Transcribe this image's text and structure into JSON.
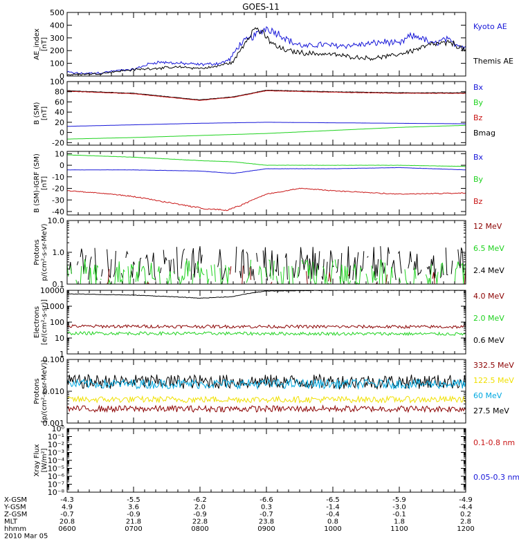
{
  "title": "GOES-11",
  "colors": {
    "black": "#000000",
    "blue": "#1515d8",
    "green": "#1ed21e",
    "red": "#c81414",
    "darkred": "#8b0000",
    "yellow": "#f0e000",
    "cyan": "#00a8e0"
  },
  "chart_data": [
    {
      "type": "line",
      "ylabel": "AE_index\n[nT]",
      "ylim": [
        0,
        500
      ],
      "yscale": "linear",
      "yticks": [
        0,
        100,
        200,
        300,
        400,
        500
      ],
      "ytick_labels": [
        "0",
        "100",
        "200",
        "300",
        "400",
        "500"
      ],
      "series": [
        {
          "name": "Kyoto AE",
          "color": "blue",
          "noise": 0.35,
          "x": [
            0,
            0.2,
            0.5,
            0.8,
            1.0,
            1.2,
            1.35,
            1.7,
            2.0,
            2.3,
            2.45,
            2.6,
            2.8,
            3.0,
            3.2,
            3.4,
            3.6,
            3.8,
            4.0,
            4.2,
            4.5,
            4.8,
            5.0,
            5.15,
            5.3,
            5.5,
            5.7,
            5.8,
            6.0
          ],
          "y": [
            30,
            20,
            25,
            45,
            50,
            90,
            110,
            100,
            90,
            100,
            130,
            250,
            310,
            380,
            330,
            260,
            230,
            250,
            240,
            240,
            250,
            270,
            250,
            310,
            310,
            250,
            290,
            260,
            230
          ]
        },
        {
          "name": "Themis AE",
          "color": "black",
          "noise": 0.35,
          "x": [
            0,
            0.3,
            0.5,
            0.8,
            1.0,
            1.3,
            1.7,
            2.0,
            2.2,
            2.5,
            2.75,
            2.85,
            3.0,
            3.15,
            3.3,
            3.6,
            4.0,
            4.3,
            4.6,
            4.9,
            5.2,
            5.5,
            5.8,
            6.0
          ],
          "y": [
            10,
            15,
            20,
            40,
            50,
            60,
            70,
            60,
            70,
            110,
            330,
            380,
            300,
            230,
            200,
            180,
            170,
            150,
            140,
            160,
            200,
            250,
            260,
            200
          ]
        }
      ],
      "legend": [
        {
          "label": "Kyoto AE",
          "color": "blue"
        },
        {
          "label": "Themis AE",
          "color": "black"
        }
      ]
    },
    {
      "type": "line",
      "ylabel": "B (SM)\n[nT]",
      "ylim": [
        -25,
        100
      ],
      "yscale": "linear",
      "yticks": [
        -20,
        0,
        20,
        40,
        60,
        80,
        100
      ],
      "ytick_labels": [
        "-20",
        "0",
        "20",
        "40",
        "60",
        "80",
        "100"
      ],
      "series": [
        {
          "name": "Bmag",
          "color": "black",
          "noise": 0.02,
          "x": [
            0,
            1,
            2,
            2.5,
            3,
            4,
            5,
            6
          ],
          "y": [
            82,
            77,
            64,
            70,
            83,
            80,
            78,
            78
          ]
        },
        {
          "name": "Bz",
          "color": "red",
          "noise": 0.02,
          "x": [
            0,
            1,
            2,
            2.5,
            3,
            4,
            5,
            6
          ],
          "y": [
            81,
            76,
            63,
            69,
            82,
            79,
            77,
            77
          ]
        },
        {
          "name": "Bx",
          "color": "blue",
          "noise": 0.01,
          "x": [
            0,
            1,
            2,
            3,
            4,
            5,
            6
          ],
          "y": [
            12,
            15,
            18,
            20,
            19,
            18,
            17
          ]
        },
        {
          "name": "By",
          "color": "green",
          "noise": 0.01,
          "x": [
            0,
            1,
            2,
            3,
            4,
            5,
            6
          ],
          "y": [
            -13,
            -10,
            -6,
            -2,
            4,
            10,
            14
          ]
        }
      ],
      "legend": [
        {
          "label": "Bx",
          "color": "blue"
        },
        {
          "label": "By",
          "color": "green"
        },
        {
          "label": "Bz",
          "color": "red"
        },
        {
          "label": "Bmag",
          "color": "black"
        }
      ]
    },
    {
      "type": "line",
      "ylabel": "B (SM)-IGRF (SM)\n[nT]",
      "ylim": [
        -43,
        12
      ],
      "yscale": "linear",
      "yticks": [
        -40,
        -30,
        -20,
        -10,
        0,
        10
      ],
      "ytick_labels": [
        "-40",
        "-30",
        "-20",
        "-10",
        "0",
        "10"
      ],
      "series": [
        {
          "name": "By",
          "color": "green",
          "noise": 0.04,
          "x": [
            0,
            1,
            2,
            2.5,
            3,
            4,
            5,
            6
          ],
          "y": [
            9,
            7,
            4,
            3,
            0,
            0,
            0,
            -1
          ]
        },
        {
          "name": "Bx",
          "color": "blue",
          "noise": 0.04,
          "x": [
            0,
            1,
            2,
            2.5,
            3,
            4,
            5,
            6
          ],
          "y": [
            -4,
            -4,
            -5,
            -7,
            -3,
            -3,
            -2,
            -4
          ]
        },
        {
          "name": "Bz",
          "color": "red",
          "noise": 0.06,
          "x": [
            0,
            0.5,
            1,
            1.5,
            2,
            2.4,
            2.6,
            3,
            3.5,
            4,
            5,
            6
          ],
          "y": [
            -22,
            -24,
            -27,
            -32,
            -37,
            -39,
            -35,
            -25,
            -20,
            -22,
            -25,
            -24
          ]
        }
      ],
      "legend": [
        {
          "label": "Bx",
          "color": "blue"
        },
        {
          "label": "By",
          "color": "green"
        },
        {
          "label": "Bz",
          "color": "red"
        }
      ]
    },
    {
      "type": "line",
      "ylabel": "Protons\np/(cm²-s-sr-MeV)",
      "ylim": [
        0.1,
        10.0
      ],
      "yscale": "log",
      "yticks": [
        0.1,
        1.0,
        10.0
      ],
      "ytick_labels": [
        "0.1",
        "1.0",
        "10.0"
      ],
      "series": [
        {
          "name": "2.4 MeV",
          "color": "black",
          "noise": 0.55,
          "gaps": true,
          "x": [
            0,
            6
          ],
          "y": [
            0.45,
            0.45
          ]
        },
        {
          "name": "6.5 MeV",
          "color": "green",
          "noise": 0.55,
          "gaps": true,
          "x": [
            0,
            6
          ],
          "y": [
            0.17,
            0.17
          ]
        },
        {
          "name": "12 MeV",
          "color": "darkred",
          "noise": 0.5,
          "gaps": true,
          "sparse": true,
          "x": [
            0,
            6
          ],
          "y": [
            0.12,
            0.12
          ]
        }
      ],
      "legend": [
        {
          "label": "12 MeV",
          "color": "darkred"
        },
        {
          "label": "6.5 MeV",
          "color": "green"
        },
        {
          "label": "2.4 MeV",
          "color": "black"
        }
      ]
    },
    {
      "type": "line",
      "ylabel": "Electrons\n[e/(cm²-s-sr)]",
      "ylim": [
        1,
        10000
      ],
      "yscale": "log",
      "yticks": [
        1,
        10,
        100,
        1000,
        10000
      ],
      "ytick_labels": [
        "1",
        "10",
        "100",
        "1000",
        "10000"
      ],
      "series": [
        {
          "name": "0.6 MeV",
          "color": "black",
          "noise": 0.03,
          "x": [
            0,
            1,
            2,
            2.5,
            3,
            4,
            5,
            6
          ],
          "y": [
            6000,
            5000,
            3200,
            4000,
            9000,
            10000,
            10000,
            10000
          ]
        },
        {
          "name": "4.0 MeV",
          "color": "darkred",
          "noise": 0.2,
          "x": [
            0,
            6
          ],
          "y": [
            55,
            50
          ]
        },
        {
          "name": "2.0 MeV",
          "color": "green",
          "noise": 0.2,
          "x": [
            0,
            6
          ],
          "y": [
            20,
            18
          ]
        }
      ],
      "legend": [
        {
          "label": "4.0 MeV",
          "color": "darkred"
        },
        {
          "label": "2.0 MeV",
          "color": "green"
        },
        {
          "label": "0.6 MeV",
          "color": "black"
        }
      ]
    },
    {
      "type": "line",
      "ylabel": "Protons\n[p/(cm²-s-sr-MeV)]",
      "ylim": [
        0.001,
        0.1
      ],
      "yscale": "log",
      "yticks": [
        0.001,
        0.01,
        0.1
      ],
      "ytick_labels": [
        "0.001",
        "0.010",
        "0.100"
      ],
      "series": [
        {
          "name": "27.5 MeV",
          "color": "black",
          "noise": 0.45,
          "x": [
            0,
            6
          ],
          "y": [
            0.02,
            0.02
          ]
        },
        {
          "name": "60 MeV",
          "color": "cyan",
          "noise": 0.3,
          "x": [
            0,
            6
          ],
          "y": [
            0.017,
            0.017
          ]
        },
        {
          "name": "122.5 MeV",
          "color": "yellow",
          "noise": 0.2,
          "x": [
            0,
            6
          ],
          "y": [
            0.0055,
            0.0055
          ]
        },
        {
          "name": "332.5 MeV",
          "color": "darkred",
          "noise": 0.2,
          "x": [
            0,
            6
          ],
          "y": [
            0.0028,
            0.0028
          ]
        }
      ],
      "legend": [
        {
          "label": "332.5 MeV",
          "color": "darkred"
        },
        {
          "label": "122.5 MeV",
          "color": "yellow"
        },
        {
          "label": "60 MeV",
          "color": "cyan"
        },
        {
          "label": "27.5 MeV",
          "color": "black"
        }
      ]
    },
    {
      "type": "line",
      "ylabel": "Xray Flux\n[W/m²]",
      "ylim": [
        1e-08,
        1
      ],
      "yscale": "log",
      "yticks": [
        1e-08,
        1e-07,
        1e-06,
        1e-05,
        0.0001,
        0.001,
        0.01,
        0.1,
        1
      ],
      "ytick_labels": [
        "10⁻⁸",
        "10⁻⁷",
        "10⁻⁶",
        "10⁻⁵",
        "10⁻⁴",
        "10⁻³",
        "10⁻²",
        "10⁻¹",
        "10⁰"
      ],
      "series": [],
      "legend": [
        {
          "label": "0.1-0.8 nm",
          "color": "red"
        },
        {
          "label": "0.05-0.3 nm",
          "color": "blue"
        }
      ]
    }
  ],
  "axis_table": {
    "xlim": [
      0,
      6
    ],
    "rows": [
      {
        "label": "X-GSM",
        "values": [
          "-4.3",
          "-5.5",
          "-6.2",
          "-6.6",
          "-6.5",
          "-5.9",
          "-4.9"
        ]
      },
      {
        "label": "Y-GSM",
        "values": [
          "4.9",
          "3.6",
          "2.0",
          "0.3",
          "-1.4",
          "-3.0",
          "-4.4"
        ]
      },
      {
        "label": "Z-GSM",
        "values": [
          "-0.7",
          "-0.9",
          "-0.9",
          "-0.7",
          "-0.4",
          "-0.1",
          "0.2"
        ]
      },
      {
        "label": "MLT",
        "values": [
          "20.8",
          "21.8",
          "22.8",
          "23.8",
          "0.8",
          "1.8",
          "2.8"
        ]
      },
      {
        "label": "hhmm",
        "values": [
          "0600",
          "0700",
          "0800",
          "0900",
          "1000",
          "1100",
          "1200"
        ]
      }
    ],
    "date": "2010 Mar 05"
  }
}
